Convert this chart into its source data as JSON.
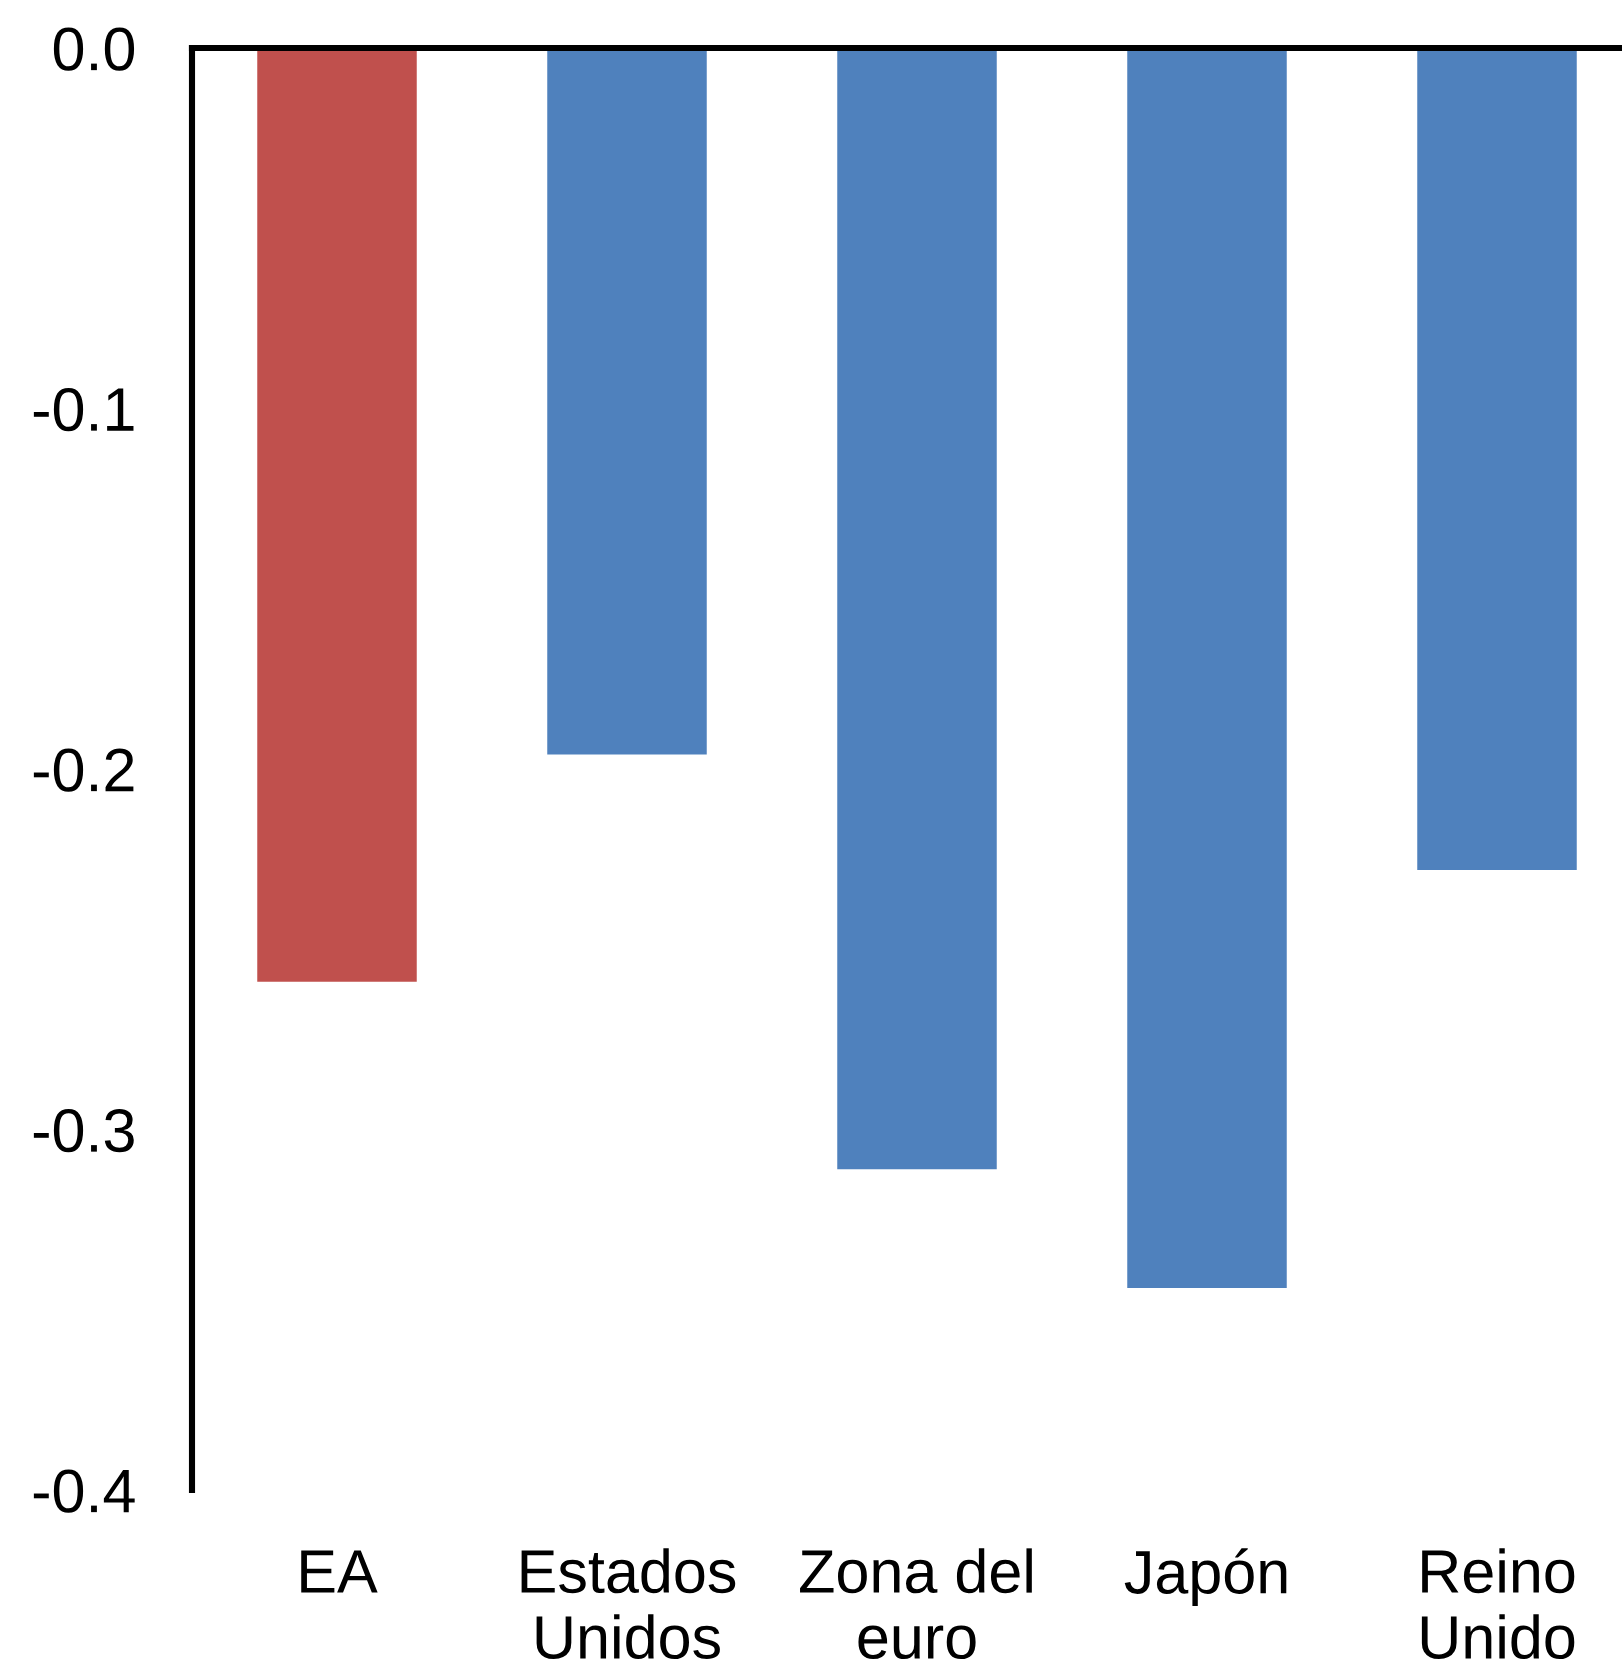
{
  "chart_data": {
    "type": "bar",
    "categories": [
      "EA",
      "Estados\nUnidos",
      "Zona del\neuro",
      "Japón",
      "Reino\nUnido"
    ],
    "values": [
      -0.259,
      -0.196,
      -0.311,
      -0.344,
      -0.228
    ],
    "colors": [
      "#c0504d",
      "#4f81bd",
      "#4f81bd",
      "#4f81bd",
      "#4f81bd"
    ],
    "ylim": [
      -0.4,
      0.0
    ],
    "yticks": [
      {
        "value": 0.0,
        "label": "0.0"
      },
      {
        "value": -0.1,
        "label": "-0.1"
      },
      {
        "value": -0.2,
        "label": "-0.2"
      },
      {
        "value": -0.3,
        "label": "-0.3"
      },
      {
        "value": -0.4,
        "label": "-0.4"
      }
    ],
    "grid": false,
    "legend": false
  }
}
